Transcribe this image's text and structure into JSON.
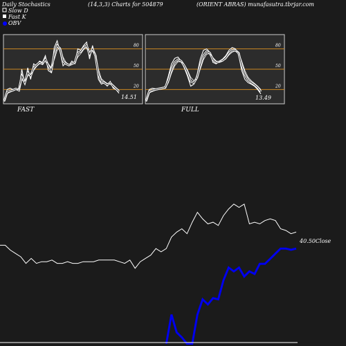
{
  "header": {
    "title": "Daily Stochastics",
    "params": "(14,3,3) Charts for 504879",
    "company": "(ORIENT ABRAS) munafasutra.tbrjar.com"
  },
  "legend": [
    {
      "label": "Slow  D",
      "color": "#ffffff",
      "swatch": "box"
    },
    {
      "label": "Fast K",
      "color": "#ffffff",
      "swatch": "box"
    },
    {
      "label": "OBV",
      "color": "#0000ff",
      "swatch": "dot"
    }
  ],
  "colors": {
    "background": "#1b1b1b",
    "panel": "#2c2c2c",
    "level_line": "#cc8822",
    "obv": "#0000ee",
    "price": "#ffffff"
  },
  "chart_data": [
    {
      "type": "line",
      "name": "FAST",
      "caption": "FAST",
      "ylim": [
        0,
        100
      ],
      "levels": [
        20,
        50,
        80
      ],
      "tick_labels": [
        "80",
        "50",
        "20"
      ],
      "end_label": "14.51",
      "series": [
        {
          "values": [
            5,
            20,
            22,
            20,
            22,
            18,
            50,
            28,
            52,
            35,
            58,
            55,
            62,
            60,
            70,
            48,
            45,
            82,
            92,
            75,
            55,
            60,
            55,
            62,
            58,
            80,
            78,
            85,
            90,
            65,
            85,
            68,
            35,
            28,
            30,
            25,
            32,
            22,
            20,
            14.51
          ]
        },
        {
          "values": [
            3,
            16,
            18,
            19,
            21,
            19,
            40,
            30,
            45,
            40,
            52,
            56,
            60,
            58,
            65,
            55,
            48,
            72,
            85,
            80,
            62,
            58,
            56,
            58,
            60,
            74,
            76,
            82,
            85,
            72,
            80,
            70,
            42,
            32,
            30,
            27,
            30,
            25,
            21,
            17
          ]
        },
        {
          "values": [
            2,
            14,
            16,
            18,
            20,
            20,
            34,
            32,
            40,
            42,
            48,
            54,
            58,
            58,
            62,
            58,
            52,
            64,
            78,
            82,
            68,
            60,
            57,
            57,
            59,
            68,
            73,
            79,
            82,
            76,
            78,
            72,
            50,
            36,
            32,
            29,
            29,
            27,
            23,
            19
          ]
        }
      ]
    },
    {
      "type": "line",
      "name": "FULL",
      "caption": "FULL",
      "ylim": [
        0,
        100
      ],
      "levels": [
        20,
        50,
        80
      ],
      "tick_labels": [
        "80",
        "50",
        "20"
      ],
      "end_label": "13.49",
      "series": [
        {
          "values": [
            5,
            20,
            22,
            21,
            22,
            23,
            24,
            40,
            58,
            66,
            68,
            62,
            52,
            40,
            25,
            28,
            42,
            65,
            78,
            80,
            75,
            60,
            58,
            62,
            65,
            70,
            78,
            82,
            80,
            72,
            48,
            35,
            30,
            28,
            25,
            20,
            13.49
          ]
        },
        {
          "values": [
            3,
            17,
            19,
            20,
            21,
            22,
            23,
            34,
            50,
            60,
            64,
            62,
            55,
            45,
            32,
            30,
            38,
            56,
            70,
            76,
            74,
            64,
            60,
            61,
            63,
            67,
            74,
            78,
            78,
            74,
            56,
            42,
            34,
            30,
            27,
            23,
            17
          ]
        },
        {
          "values": [
            2,
            15,
            17,
            19,
            20,
            21,
            22,
            30,
            44,
            55,
            61,
            61,
            57,
            49,
            38,
            33,
            36,
            50,
            64,
            72,
            73,
            67,
            62,
            61,
            62,
            65,
            71,
            75,
            77,
            75,
            62,
            48,
            38,
            33,
            29,
            25,
            20
          ]
        }
      ]
    },
    {
      "type": "line",
      "name": "Close",
      "end_label": "40.50Close",
      "series": [
        {
          "name": "Close",
          "values": [
            20,
            20,
            17,
            15,
            13,
            9,
            12,
            9,
            10,
            10,
            11,
            9,
            9,
            10,
            9,
            9,
            10,
            10,
            10,
            11,
            11,
            11,
            11,
            10,
            9,
            11,
            6,
            10,
            12,
            14,
            18,
            16,
            18,
            25,
            28,
            30,
            27,
            34,
            40,
            36,
            33,
            34,
            32,
            38,
            42,
            45,
            43,
            45,
            33,
            34,
            33,
            35,
            36,
            35,
            30,
            29,
            27,
            28
          ]
        },
        {
          "name": "OBV",
          "values": [
            null,
            null,
            null,
            null,
            null,
            null,
            null,
            null,
            null,
            null,
            null,
            null,
            null,
            null,
            null,
            null,
            null,
            null,
            null,
            null,
            null,
            null,
            null,
            null,
            null,
            null,
            null,
            null,
            null,
            null,
            null,
            null,
            -5,
            18,
            4,
            0,
            -5,
            -5,
            18,
            30,
            26,
            31,
            30,
            45,
            55,
            52,
            55,
            48,
            52,
            50,
            58,
            58,
            62,
            66,
            70,
            70,
            69,
            70
          ]
        }
      ]
    }
  ]
}
